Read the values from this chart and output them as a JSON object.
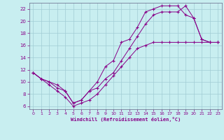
{
  "xlabel": "Windchill (Refroidissement éolien,°C)",
  "bg_color": "#c8eef0",
  "grid_color": "#a0ccd4",
  "line_color": "#880088",
  "xlim": [
    -0.5,
    23.5
  ],
  "ylim": [
    5.5,
    23.0
  ],
  "xticks": [
    0,
    1,
    2,
    3,
    4,
    5,
    6,
    7,
    8,
    9,
    10,
    11,
    12,
    13,
    14,
    15,
    16,
    17,
    18,
    19,
    20,
    21,
    22,
    23
  ],
  "yticks": [
    6,
    8,
    10,
    12,
    14,
    16,
    18,
    20,
    22
  ],
  "line1_x": [
    0,
    1,
    2,
    3,
    4,
    5,
    6,
    7,
    8,
    9,
    10,
    11,
    12,
    13,
    14,
    15,
    16,
    17,
    18,
    19,
    20,
    21,
    22,
    23
  ],
  "line1_y": [
    11.5,
    10.5,
    10.0,
    9.5,
    8.5,
    6.5,
    7.0,
    8.5,
    10.0,
    12.5,
    13.5,
    16.5,
    17.0,
    19.0,
    21.5,
    22.0,
    22.5,
    22.5,
    22.5,
    21.0,
    20.5,
    17.0,
    16.5,
    16.5
  ],
  "line2_x": [
    0,
    1,
    2,
    3,
    4,
    5,
    6,
    7,
    8,
    9,
    10,
    11,
    12,
    13,
    14,
    15,
    16,
    17,
    18,
    19,
    20,
    21,
    22,
    23
  ],
  "line2_y": [
    11.5,
    10.5,
    10.0,
    9.0,
    8.5,
    6.5,
    7.0,
    8.5,
    9.0,
    10.5,
    11.5,
    13.5,
    15.5,
    17.5,
    19.5,
    21.0,
    21.5,
    21.5,
    21.5,
    22.5,
    20.5,
    17.0,
    16.5,
    16.5
  ],
  "line3_x": [
    0,
    1,
    2,
    3,
    4,
    5,
    6,
    7,
    8,
    9,
    10,
    11,
    12,
    13,
    14,
    15,
    16,
    17,
    18,
    19,
    20,
    21,
    22,
    23
  ],
  "line3_y": [
    11.5,
    10.5,
    9.5,
    8.5,
    7.5,
    6.0,
    6.5,
    7.0,
    8.0,
    9.5,
    11.0,
    12.5,
    14.0,
    15.5,
    16.0,
    16.5,
    16.5,
    16.5,
    16.5,
    16.5,
    16.5,
    16.5,
    16.5,
    16.5
  ]
}
